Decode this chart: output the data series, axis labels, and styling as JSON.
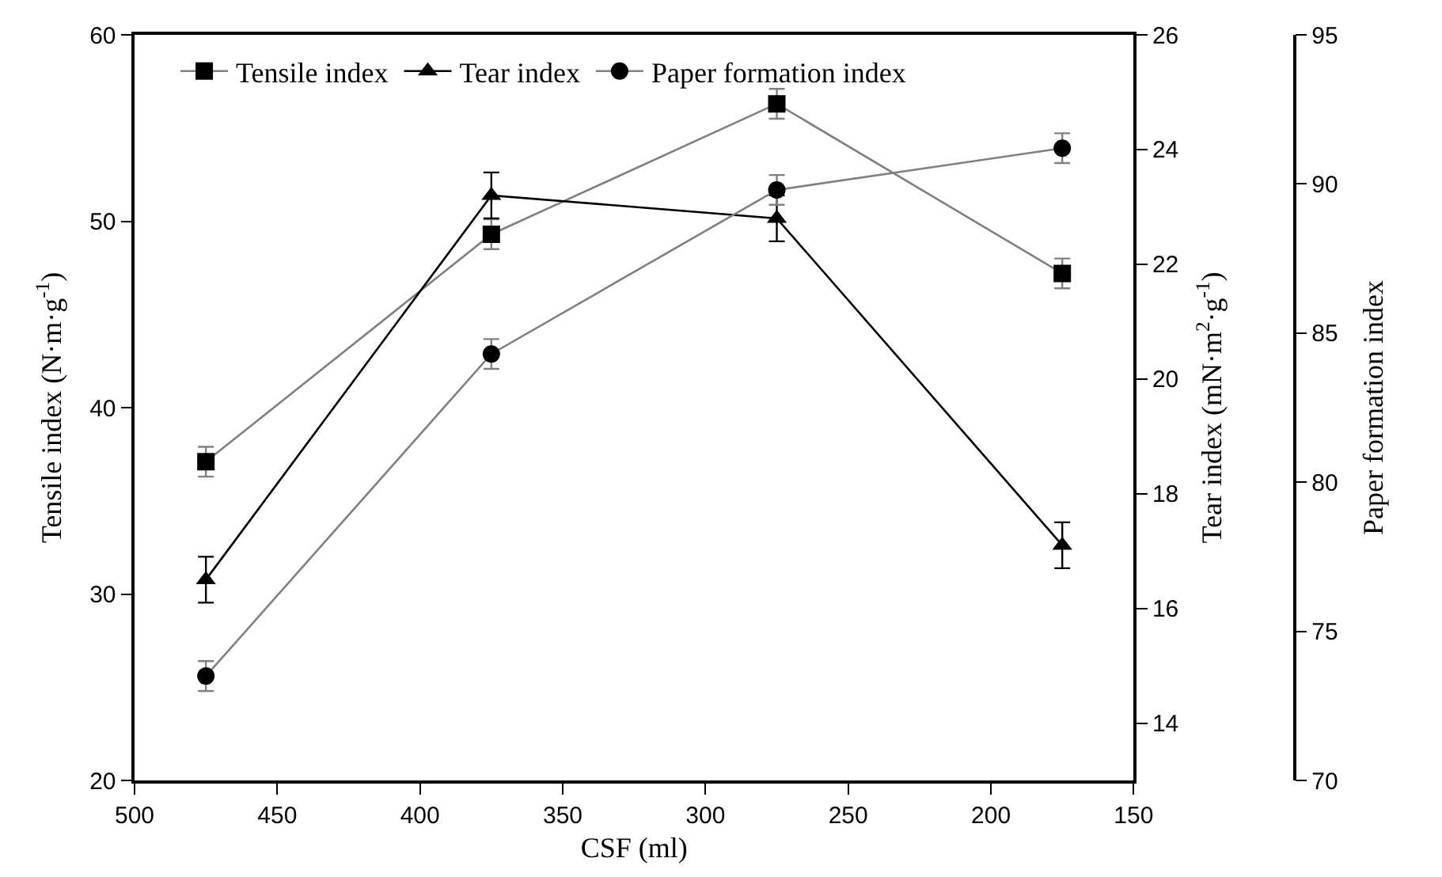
{
  "chart_data": {
    "type": "line",
    "xlabel": "CSF (ml)",
    "ylabel": "Tensile index (N·m·g$^{-1}$)",
    "y2label": "Tear index (mN·m$^{2}$·g$^{-1}$)",
    "y3label": "Paper formation index",
    "x": [
      475,
      375,
      275,
      175
    ],
    "xlim": [
      500,
      150
    ],
    "xticks": [
      500,
      450,
      400,
      350,
      300,
      250,
      200,
      150
    ],
    "ylim": [
      20,
      60
    ],
    "yticks": [
      20,
      30,
      40,
      50,
      60
    ],
    "y2lim": [
      13,
      26
    ],
    "y2ticks": [
      14,
      16,
      18,
      20,
      22,
      24,
      26
    ],
    "y3lim": [
      70,
      95
    ],
    "y3ticks": [
      70,
      75,
      80,
      85,
      90,
      95
    ],
    "grid": false,
    "legend": "top left",
    "series": [
      {
        "name": "Tensile index",
        "color": "#808080",
        "marker": "square",
        "values": [
          37.1,
          49.3,
          56.3,
          47.2
        ],
        "errors": [
          0.8,
          0.8,
          0.8,
          0.8
        ]
      },
      {
        "name": "Tear index",
        "color": "#000000",
        "marker": "triangle",
        "axis": "y2",
        "values": [
          16.5,
          23.2,
          22.8,
          17.1
        ],
        "errors": [
          0.4,
          0.4,
          0.4,
          0.4
        ]
      },
      {
        "name": "Paper formation index",
        "color": "#808080",
        "marker": "circle",
        "axis": "y3",
        "values": [
          73.5,
          84.3,
          89.8,
          91.2
        ],
        "errors": [
          0.5,
          0.5,
          0.5,
          0.5
        ]
      }
    ]
  }
}
